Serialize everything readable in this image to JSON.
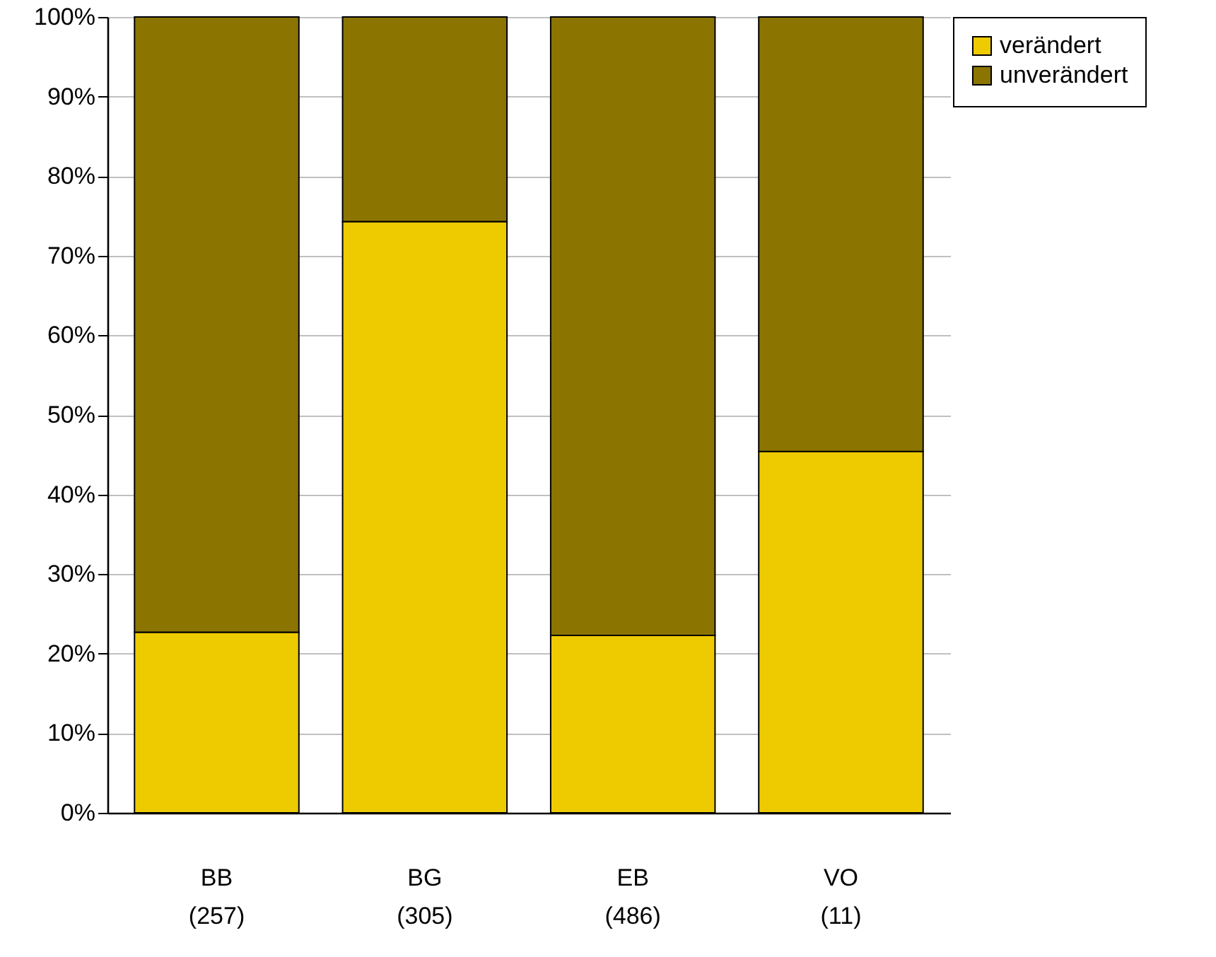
{
  "chart_data": {
    "type": "bar",
    "stacked": true,
    "categories": [
      "BB\n(257)",
      "BG\n(305)",
      "EB\n(486)",
      "VO\n(11)"
    ],
    "series": [
      {
        "name": "verändert",
        "color": "#eecb00",
        "values": [
          22.7,
          74.3,
          22.3,
          45.4
        ]
      },
      {
        "name": "unverändert",
        "color": "#8b7500",
        "values": [
          77.3,
          25.7,
          77.7,
          54.6
        ]
      }
    ],
    "ylim": [
      0,
      100
    ],
    "yticks": [
      {
        "value": 0,
        "label": "0%"
      },
      {
        "value": 10,
        "label": "10%"
      },
      {
        "value": 20,
        "label": "20%"
      },
      {
        "value": 30,
        "label": "30%"
      },
      {
        "value": 40,
        "label": "40%"
      },
      {
        "value": 50,
        "label": "50%"
      },
      {
        "value": 60,
        "label": "60%"
      },
      {
        "value": 70,
        "label": "70%"
      },
      {
        "value": 80,
        "label": "80%"
      },
      {
        "value": 90,
        "label": "90%"
      },
      {
        "value": 100,
        "label": "100%"
      }
    ],
    "grid": "y",
    "legend": "top right"
  }
}
